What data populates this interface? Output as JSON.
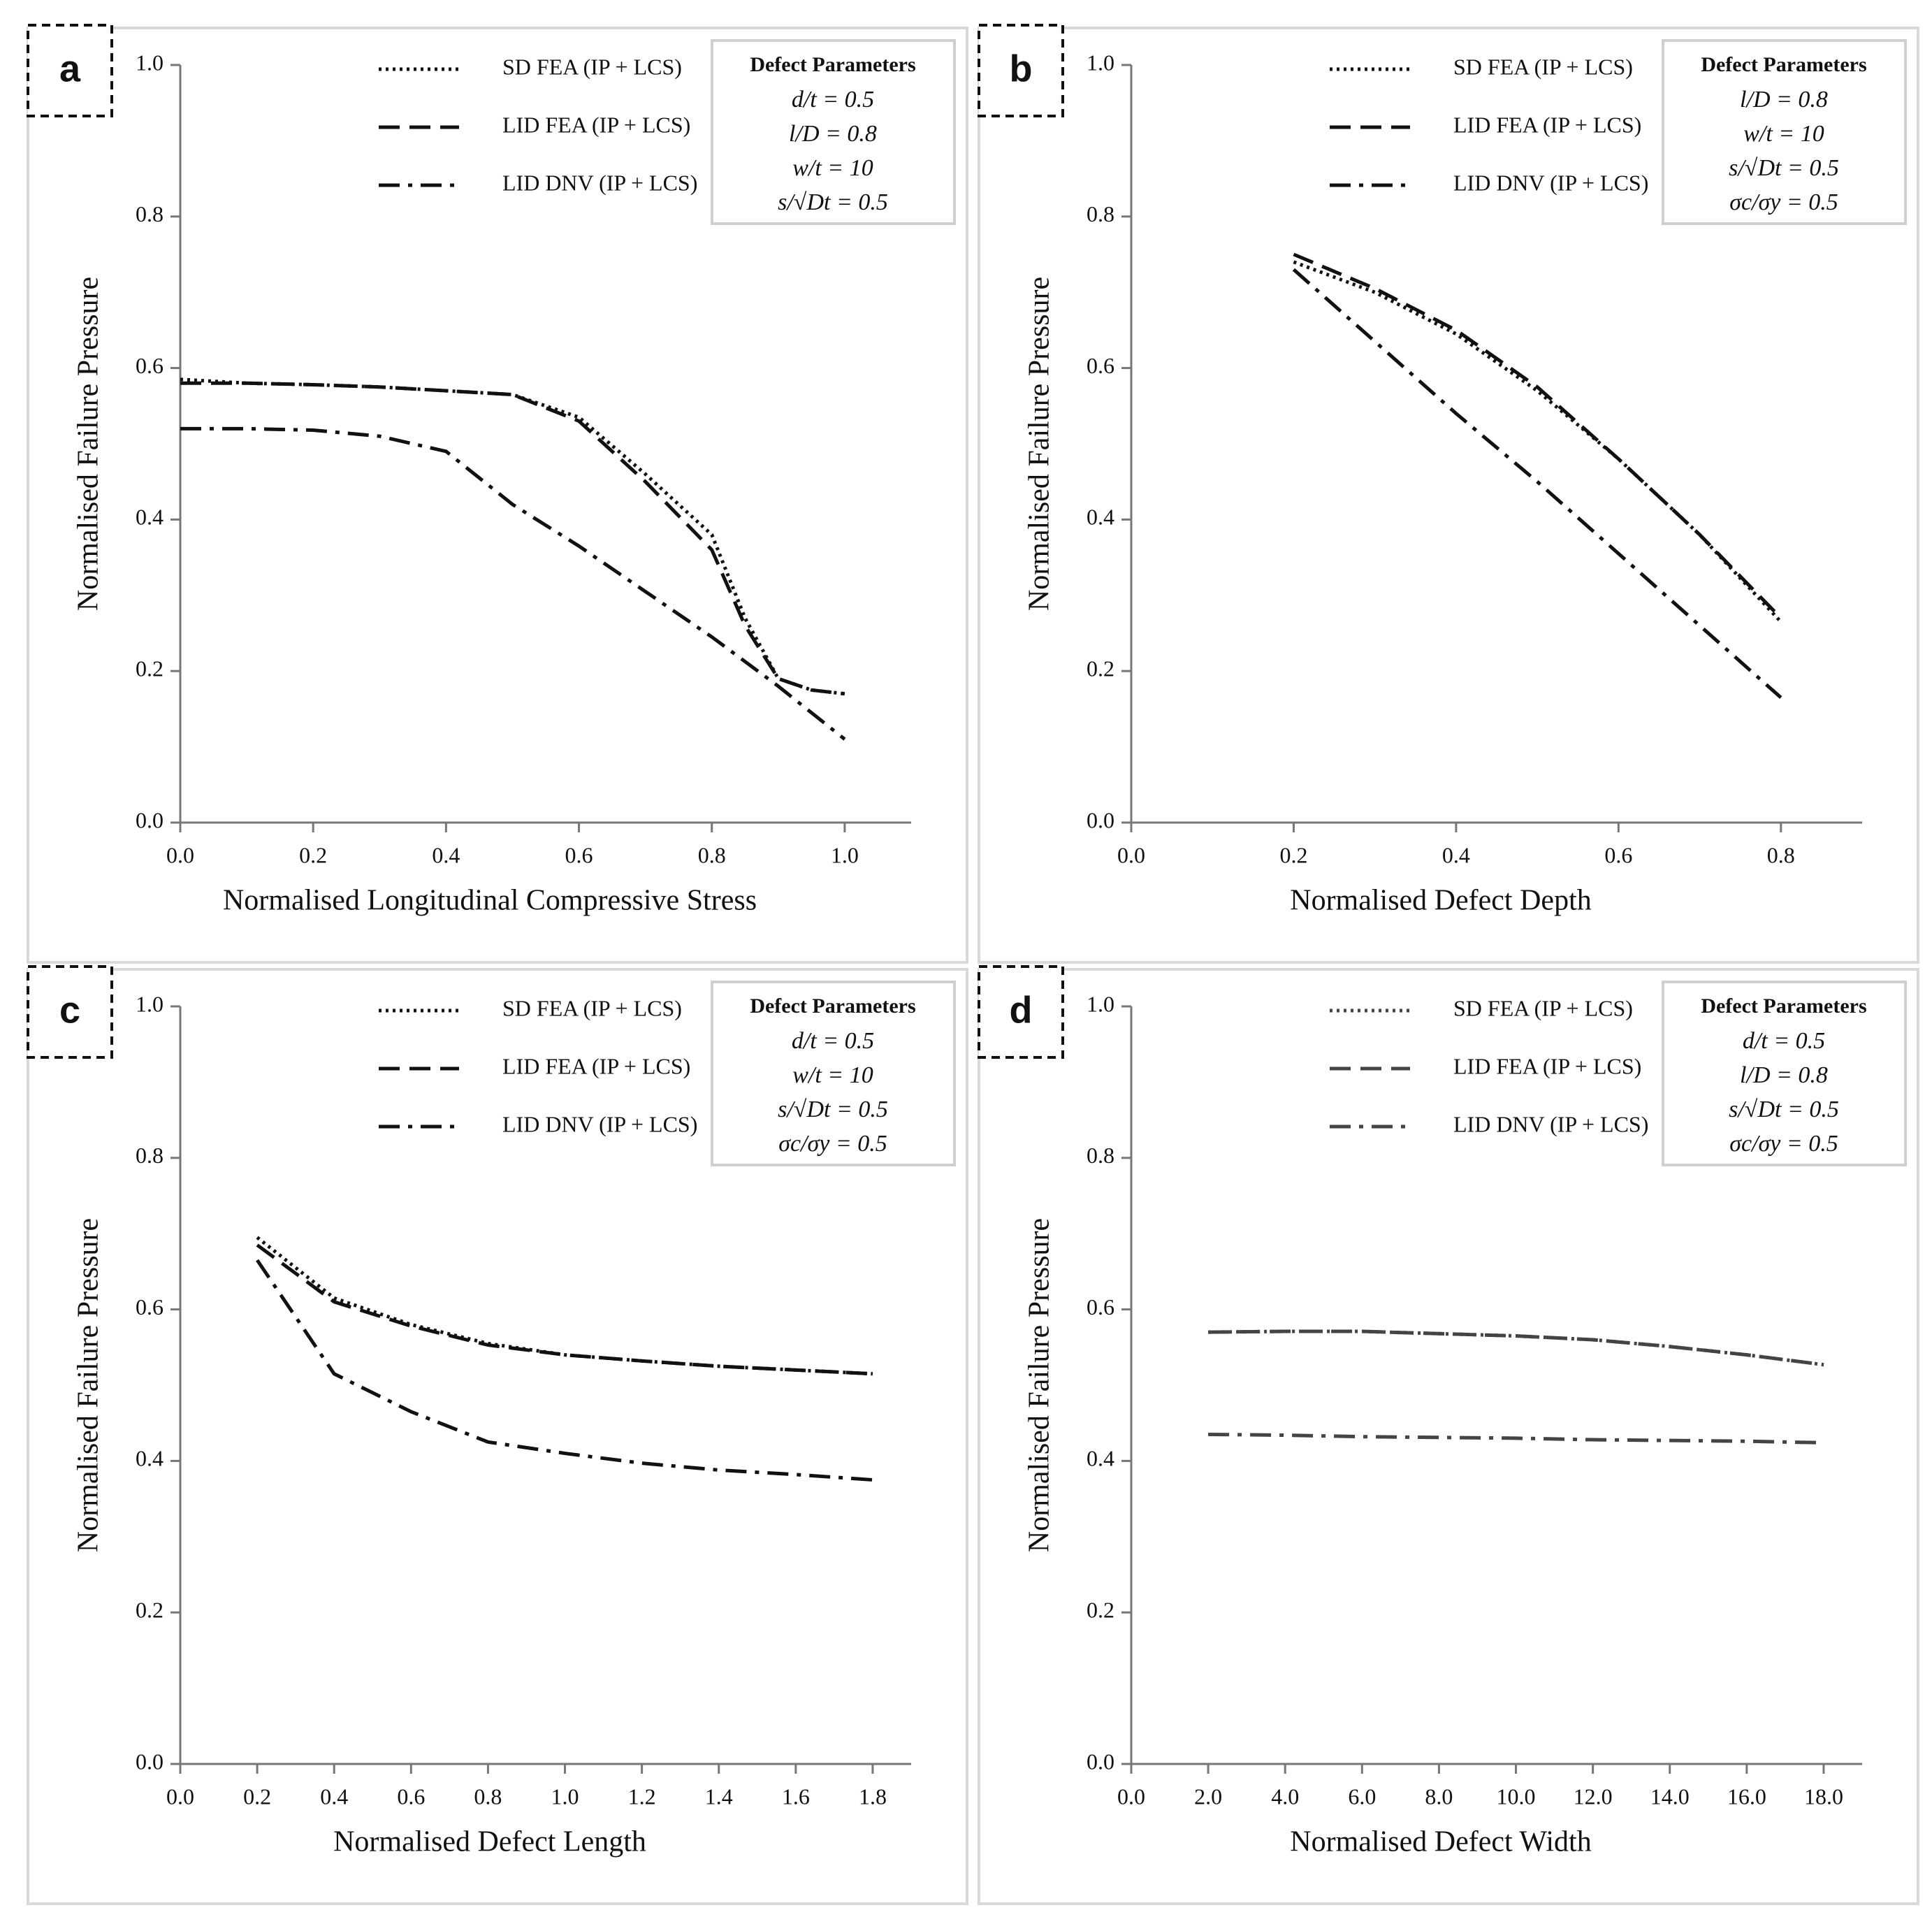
{
  "chart_data": [
    {
      "type": "line",
      "panel_label": "a",
      "xlabel": "Normalised Longitudinal Compressive Stress",
      "ylabel": "Normalised Failure Pressure",
      "xlim": [
        0,
        1.1
      ],
      "ylim": [
        0,
        1
      ],
      "xticks": [
        {
          "value": 0,
          "label": "0.0"
        },
        0.2,
        0.4,
        0.6,
        0.8,
        {
          "value": 1,
          "label": "1.0"
        }
      ],
      "yticks": [
        {
          "value": 0,
          "label": "0.0"
        },
        0.2,
        0.4,
        0.6,
        0.8,
        {
          "value": 1,
          "label": "1.0"
        }
      ],
      "parameters_title": "Defect Parameters",
      "parameters": [
        "d/t = 0.5",
        "l/D = 0.8",
        "w/t = 10",
        "s/√Dt = 0.5"
      ],
      "series": [
        {
          "name": "SD FEA (IP + LCS)",
          "color": "#111111",
          "style": "dotted",
          "x": [
            0,
            0.1,
            0.2,
            0.3,
            0.4,
            0.5,
            0.6,
            0.7,
            0.8,
            0.85,
            0.9,
            0.95,
            1.0
          ],
          "values": [
            0.585,
            0.58,
            0.578,
            0.575,
            0.57,
            0.565,
            0.535,
            0.46,
            0.38,
            0.27,
            0.19,
            0.175,
            0.17
          ]
        },
        {
          "name": "LID FEA (IP + LCS)",
          "color": "#111111",
          "style": "dashed",
          "x": [
            0,
            0.1,
            0.2,
            0.3,
            0.4,
            0.5,
            0.6,
            0.7,
            0.8,
            0.85,
            0.9,
            0.95,
            1.0
          ],
          "values": [
            0.58,
            0.58,
            0.578,
            0.575,
            0.57,
            0.565,
            0.53,
            0.45,
            0.36,
            0.26,
            0.19,
            0.175,
            0.17
          ]
        },
        {
          "name": "LID DNV (IP + LCS)",
          "color": "#111111",
          "style": "dashdot",
          "x": [
            0,
            0.1,
            0.2,
            0.3,
            0.4,
            0.5,
            0.6,
            0.7,
            0.8,
            0.9,
            1.0
          ],
          "values": [
            0.52,
            0.52,
            0.518,
            0.51,
            0.49,
            0.42,
            0.365,
            0.305,
            0.245,
            0.18,
            0.11
          ]
        }
      ]
    },
    {
      "type": "line",
      "panel_label": "b",
      "xlabel": "Normalised Defect Depth",
      "ylabel": "Normalised Failure Pressure",
      "xlim": [
        0,
        0.9
      ],
      "ylim": [
        0,
        1
      ],
      "xticks": [
        {
          "value": 0,
          "label": "0.0"
        },
        0.2,
        0.4,
        0.6,
        0.8
      ],
      "yticks": [
        {
          "value": 0,
          "label": "0.0"
        },
        0.2,
        0.4,
        0.6,
        0.8,
        {
          "value": 1,
          "label": "1.0"
        }
      ],
      "parameters_title": "Defect Parameters",
      "parameters": [
        "l/D = 0.8",
        "w/t = 10",
        "s/√Dt = 0.5",
        "σc/σy = 0.5"
      ],
      "series": [
        {
          "name": "SD FEA (IP + LCS)",
          "color": "#111111",
          "style": "dotted",
          "x": [
            0.2,
            0.3,
            0.4,
            0.5,
            0.6,
            0.7,
            0.8
          ],
          "values": [
            0.74,
            0.7,
            0.645,
            0.57,
            0.48,
            0.38,
            0.265
          ]
        },
        {
          "name": "LID FEA (IP + LCS)",
          "color": "#111111",
          "style": "dashed",
          "x": [
            0.2,
            0.3,
            0.4,
            0.5,
            0.6,
            0.7,
            0.8
          ],
          "values": [
            0.75,
            0.705,
            0.65,
            0.575,
            0.48,
            0.38,
            0.27
          ]
        },
        {
          "name": "LID DNV (IP + LCS)",
          "color": "#111111",
          "style": "dashdot",
          "x": [
            0.2,
            0.3,
            0.4,
            0.5,
            0.6,
            0.7,
            0.8
          ],
          "values": [
            0.73,
            0.635,
            0.54,
            0.45,
            0.355,
            0.26,
            0.165
          ]
        }
      ]
    },
    {
      "type": "line",
      "panel_label": "c",
      "xlabel": "Normalised Defect Length",
      "ylabel": "Normalised Failure Pressure",
      "xlim": [
        0,
        1.9
      ],
      "ylim": [
        0,
        1
      ],
      "xticks": [
        {
          "value": 0,
          "label": "0.0"
        },
        0.2,
        0.4,
        0.6,
        0.8,
        {
          "value": 1,
          "label": "1.0"
        },
        1.2,
        1.4,
        1.6,
        1.8
      ],
      "yticks": [
        {
          "value": 0,
          "label": "0.0"
        },
        0.2,
        0.4,
        0.6,
        0.8,
        {
          "value": 1,
          "label": "1.0"
        }
      ],
      "parameters_title": "Defect Parameters",
      "parameters": [
        "d/t = 0.5",
        "w/t = 10",
        "s/√Dt = 0.5",
        "σc/σy = 0.5"
      ],
      "series": [
        {
          "name": "SD FEA (IP + LCS)",
          "color": "#111111",
          "style": "dotted",
          "x": [
            0.2,
            0.4,
            0.6,
            0.8,
            1.0,
            1.2,
            1.4,
            1.6,
            1.8
          ],
          "values": [
            0.695,
            0.615,
            0.58,
            0.555,
            0.54,
            0.532,
            0.525,
            0.52,
            0.515
          ]
        },
        {
          "name": "LID FEA (IP + LCS)",
          "color": "#111111",
          "style": "dashed",
          "x": [
            0.2,
            0.4,
            0.6,
            0.8,
            1.0,
            1.2,
            1.4,
            1.6,
            1.8
          ],
          "values": [
            0.685,
            0.61,
            0.578,
            0.553,
            0.54,
            0.532,
            0.525,
            0.52,
            0.515
          ]
        },
        {
          "name": "LID DNV (IP + LCS)",
          "color": "#111111",
          "style": "dashdot",
          "x": [
            0.2,
            0.4,
            0.6,
            0.8,
            1.0,
            1.2,
            1.4,
            1.6,
            1.8
          ],
          "values": [
            0.665,
            0.515,
            0.465,
            0.425,
            0.41,
            0.397,
            0.388,
            0.382,
            0.375
          ]
        }
      ]
    },
    {
      "type": "line",
      "panel_label": "d",
      "xlabel": "Normalised Defect Width",
      "ylabel": "Normalised Failure Pressure",
      "xlim": [
        0,
        19
      ],
      "ylim": [
        0,
        1
      ],
      "xticks": [
        {
          "value": 0,
          "label": "0.0"
        },
        {
          "value": 2,
          "label": "2.0"
        },
        {
          "value": 4,
          "label": "4.0"
        },
        {
          "value": 6,
          "label": "6.0"
        },
        {
          "value": 8,
          "label": "8.0"
        },
        {
          "value": 10,
          "label": "10.0"
        },
        {
          "value": 12,
          "label": "12.0"
        },
        {
          "value": 14,
          "label": "14.0"
        },
        {
          "value": 16,
          "label": "16.0"
        },
        {
          "value": 18,
          "label": "18.0"
        }
      ],
      "yticks": [
        {
          "value": 0,
          "label": "0.0"
        },
        0.2,
        0.4,
        0.6,
        0.8,
        {
          "value": 1,
          "label": "1.0"
        }
      ],
      "parameters_title": "Defect Parameters",
      "parameters": [
        "d/t = 0.5",
        "l/D = 0.8",
        "s/√Dt = 0.5",
        "σc/σy = 0.5"
      ],
      "series": [
        {
          "name": "SD FEA (IP + LCS)",
          "color": "#444444",
          "style": "dotted",
          "x": [
            2,
            4,
            6,
            8,
            10,
            12,
            14,
            16,
            18
          ],
          "values": [
            0.57,
            0.571,
            0.571,
            0.568,
            0.565,
            0.56,
            0.551,
            0.54,
            0.527
          ]
        },
        {
          "name": "LID FEA (IP + LCS)",
          "color": "#444444",
          "style": "dashed",
          "x": [
            2,
            4,
            6,
            8,
            10,
            12,
            14,
            16,
            18
          ],
          "values": [
            0.57,
            0.571,
            0.571,
            0.568,
            0.565,
            0.56,
            0.551,
            0.54,
            0.527
          ]
        },
        {
          "name": "LID DNV (IP + LCS)",
          "color": "#444444",
          "style": "dashdot",
          "x": [
            2,
            4,
            6,
            8,
            10,
            12,
            14,
            16,
            18
          ],
          "values": [
            0.435,
            0.434,
            0.432,
            0.431,
            0.43,
            0.428,
            0.427,
            0.426,
            0.424
          ]
        }
      ]
    }
  ]
}
